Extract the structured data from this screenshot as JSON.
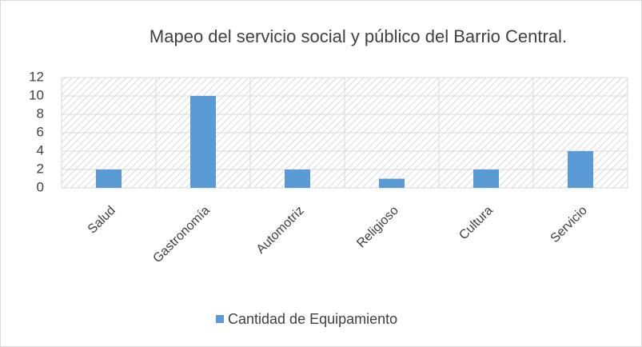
{
  "chart_data": {
    "type": "bar",
    "title": "Mapeo del servicio social y público del Barrio Central.",
    "categories": [
      "Salud",
      "Gastronomía",
      "Automotriz",
      "Religioso",
      "Cultura",
      "Servicio"
    ],
    "series": [
      {
        "name": "Cantidad de Equipamiento",
        "color": "#5b9bd5",
        "values": [
          2,
          10,
          2,
          1,
          2,
          4
        ]
      }
    ],
    "ylim": [
      0,
      12
    ],
    "yticks": [
      0,
      2,
      4,
      6,
      8,
      10,
      12
    ],
    "grid": true,
    "legend": "bottom"
  }
}
